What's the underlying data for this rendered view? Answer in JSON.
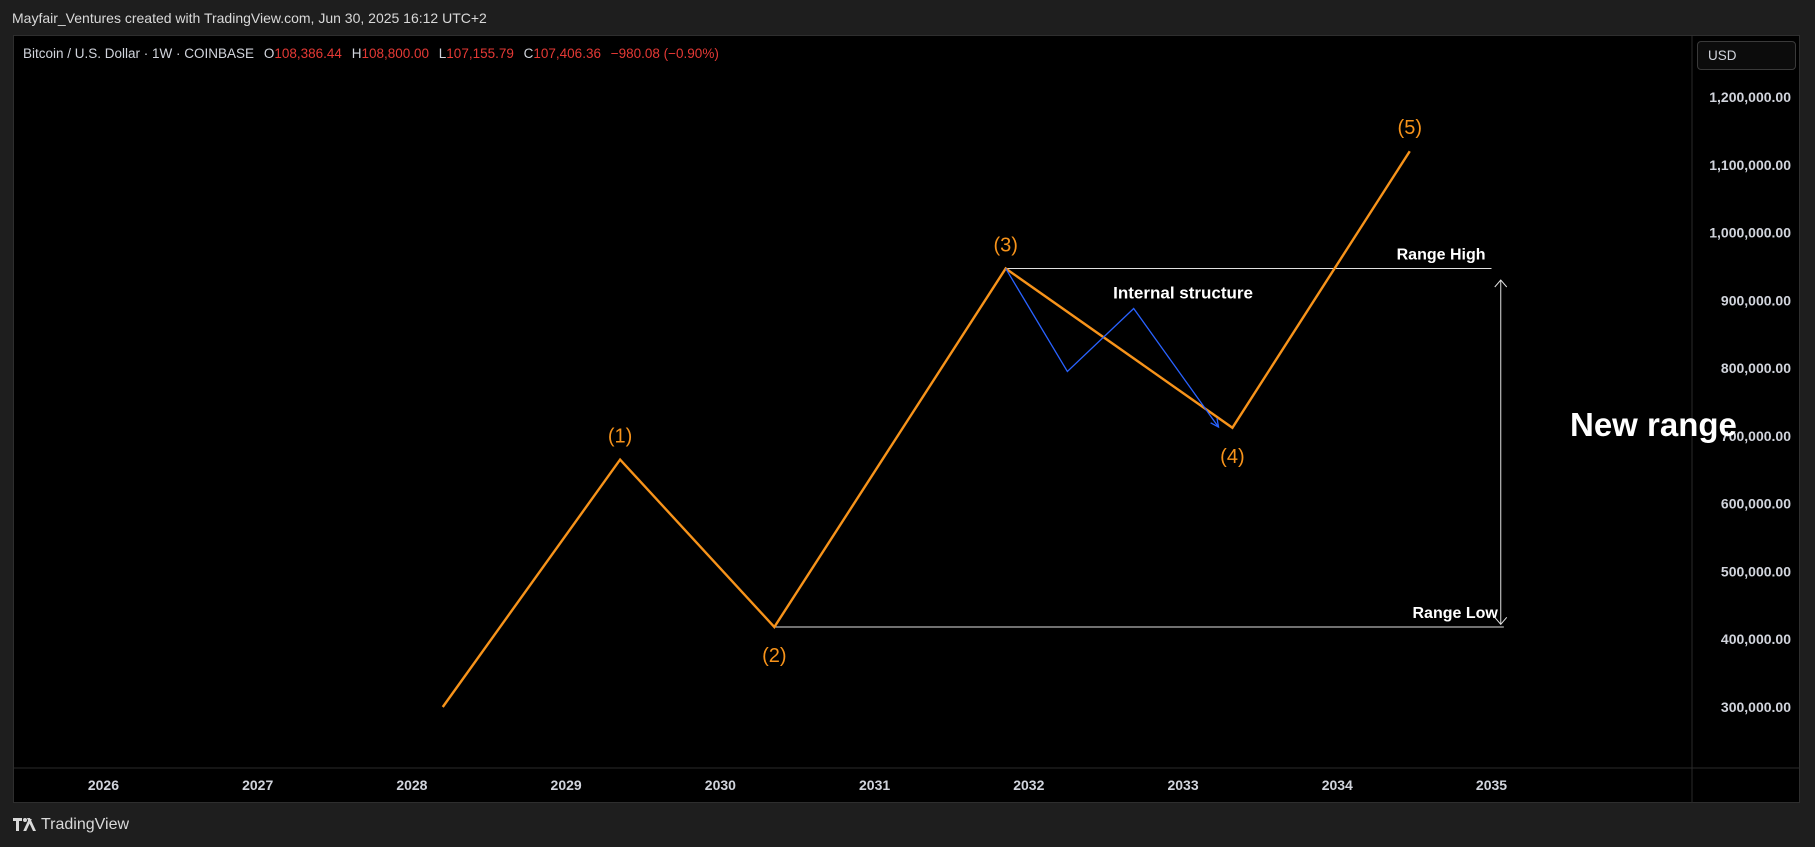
{
  "header": {
    "caption": "Mayfair_Ventures created with TradingView.com, Jun 30, 2025 16:12 UTC+2"
  },
  "legend": {
    "symbol": "Bitcoin / U.S. Dollar · 1W · COINBASE",
    "o_label": "O",
    "o_value": "108,386.44",
    "h_label": "H",
    "h_value": "108,800.00",
    "l_label": "L",
    "l_value": "107,155.79",
    "c_label": "C",
    "c_value": "107,406.36",
    "change": "−980.08 (−0.90%)",
    "value_color": "#e53935"
  },
  "currency_button": {
    "label": "USD"
  },
  "footer": {
    "brand": "TradingView",
    "logo_icon": "tradingview-logo-icon"
  },
  "chart_data": {
    "type": "line",
    "xlim": [
      2025.42,
      2036.3
    ],
    "ylim": [
      210000,
      1290000
    ],
    "x_ticks": [
      2026,
      2027,
      2028,
      2029,
      2030,
      2031,
      2032,
      2033,
      2034,
      2035
    ],
    "x_tick_labels": [
      "2026",
      "2027",
      "2028",
      "2029",
      "2030",
      "2031",
      "2032",
      "2033",
      "2034",
      "2035"
    ],
    "y_ticks": [
      300000,
      400000,
      500000,
      600000,
      700000,
      800000,
      900000,
      1000000,
      1100000,
      1200000
    ],
    "y_tick_labels": [
      "300,000.00",
      "400,000.00",
      "500,000.00",
      "600,000.00",
      "700,000.00",
      "800,000.00",
      "900,000.00",
      "1,000,000.00",
      "1,100,000.00",
      "1,200,000.00"
    ],
    "series": [
      {
        "color": "#f7931a",
        "points": [
          {
            "x": 2028.2,
            "y": 300000
          },
          {
            "x": 2029.35,
            "y": 665000
          },
          {
            "x": 2030.35,
            "y": 418000
          },
          {
            "x": 2031.85,
            "y": 947000
          },
          {
            "x": 2033.32,
            "y": 712000
          },
          {
            "x": 2034.47,
            "y": 1120000
          }
        ]
      },
      {
        "color": "#2962ff",
        "points": [
          {
            "x": 2031.85,
            "y": 947000
          },
          {
            "x": 2032.25,
            "y": 795000
          },
          {
            "x": 2032.68,
            "y": 888000
          },
          {
            "x": 2033.23,
            "y": 713000
          }
        ]
      }
    ],
    "wave_labels": [
      {
        "text": "(1)",
        "x": 2029.35,
        "y": 665000,
        "pos": "above"
      },
      {
        "text": "(2)",
        "x": 2030.35,
        "y": 418000,
        "pos": "below"
      },
      {
        "text": "(3)",
        "x": 2031.85,
        "y": 947000,
        "pos": "above"
      },
      {
        "text": "(4)",
        "x": 2033.32,
        "y": 712000,
        "pos": "below"
      },
      {
        "text": "(5)",
        "x": 2034.47,
        "y": 1120000,
        "pos": "above"
      }
    ],
    "wave_label_color": "#f7931a",
    "levels": [
      {
        "label": "Range High",
        "y": 947000,
        "x_start": 2031.85,
        "x_end": 2035.0
      },
      {
        "label": "Range Low",
        "y": 418000,
        "x_start": 2030.35,
        "x_end": 2035.08
      }
    ],
    "range_arrow": {
      "x": 2035.06,
      "y_top": 930000,
      "y_bottom": 422000
    },
    "annotations": [
      {
        "text": "Internal structure",
        "x": 2033.0,
        "y": 903000,
        "size": "medium"
      },
      {
        "text": "New range",
        "x": 2036.05,
        "y": 700000,
        "size": "large"
      }
    ]
  }
}
